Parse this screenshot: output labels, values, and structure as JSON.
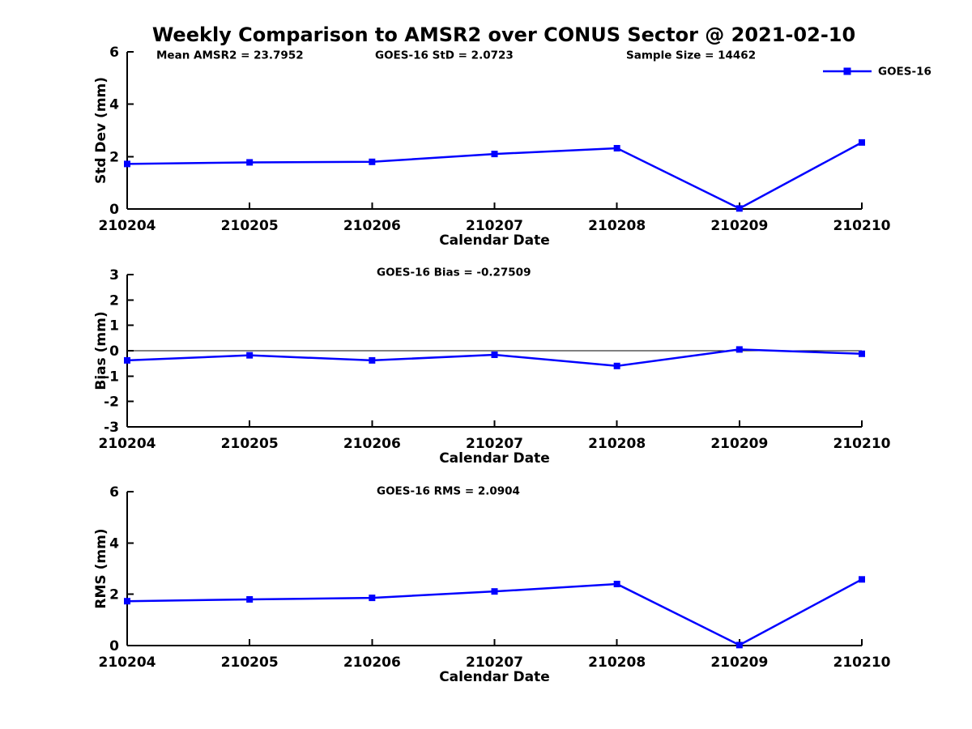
{
  "page_title": "Weekly Comparison to AMSR2 over CONUS Sector @ 2021-02-10",
  "colors": {
    "series": "#0000FF",
    "axis": "#000000",
    "text": "#000000",
    "background": "#FFFFFF"
  },
  "legend": {
    "label": "GOES-16",
    "position": "top-right",
    "marker": "square"
  },
  "chart_data": [
    {
      "type": "line",
      "name": "std-dev-panel",
      "ylabel": "Std Dev (mm)",
      "xlabel": "Calendar Date",
      "categories": [
        "210204",
        "210205",
        "210206",
        "210207",
        "210208",
        "210209",
        "210210"
      ],
      "series": [
        {
          "name": "GOES-16",
          "values": [
            1.72,
            1.78,
            1.8,
            2.1,
            2.32,
            0.02,
            2.54
          ],
          "color": "#0000FF",
          "marker": "square"
        }
      ],
      "ylim": [
        0,
        6
      ],
      "yticks": [
        0,
        2,
        4,
        6
      ],
      "annotations": [
        "Mean AMSR2 = 23.7952",
        "GOES-16 StD = 2.0723",
        "Sample Size = 14462"
      ],
      "zero_line": false,
      "legend_visible": true,
      "grid": false
    },
    {
      "type": "line",
      "name": "bias-panel",
      "ylabel": "Bias (mm)",
      "xlabel": "Calendar Date",
      "categories": [
        "210204",
        "210205",
        "210206",
        "210207",
        "210208",
        "210209",
        "210210"
      ],
      "series": [
        {
          "name": "GOES-16",
          "values": [
            -0.38,
            -0.18,
            -0.38,
            -0.16,
            -0.6,
            0.05,
            -0.12
          ],
          "color": "#0000FF",
          "marker": "square"
        }
      ],
      "ylim": [
        -3,
        3
      ],
      "yticks": [
        3,
        2,
        1,
        0,
        -1,
        -2,
        -3
      ],
      "annotations": [
        "GOES-16 Bias  = -0.27509"
      ],
      "zero_line": true,
      "legend_visible": false,
      "grid": false
    },
    {
      "type": "line",
      "name": "rms-panel",
      "ylabel": "RMS (mm)",
      "xlabel": "Calendar Date",
      "categories": [
        "210204",
        "210205",
        "210206",
        "210207",
        "210208",
        "210209",
        "210210"
      ],
      "series": [
        {
          "name": "GOES-16",
          "values": [
            1.73,
            1.8,
            1.86,
            2.11,
            2.4,
            0.02,
            2.58
          ],
          "color": "#0000FF",
          "marker": "square"
        }
      ],
      "ylim": [
        0,
        6
      ],
      "yticks": [
        0,
        2,
        4,
        6
      ],
      "annotations": [
        "GOES-16 RMS  = 2.0904"
      ],
      "zero_line": false,
      "legend_visible": false,
      "grid": false
    }
  ]
}
